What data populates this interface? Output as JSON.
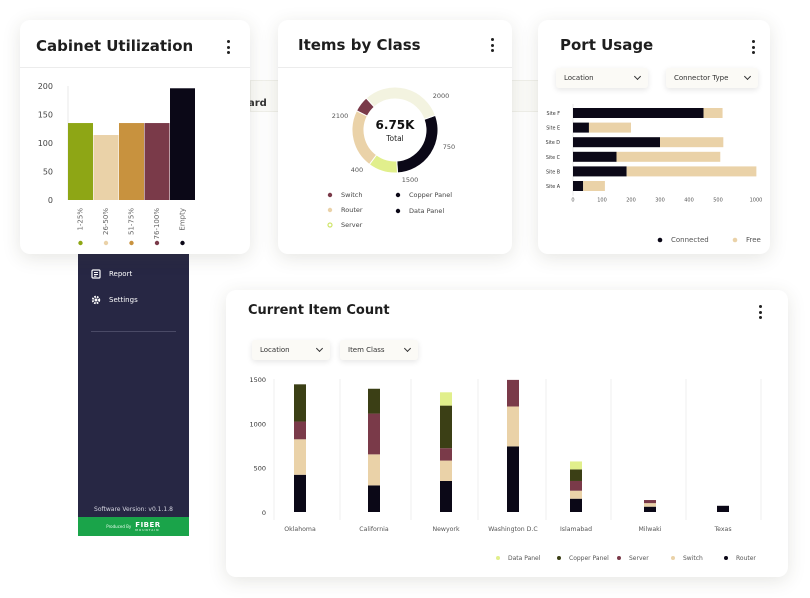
{
  "background_fragment": "ard",
  "cabinet_utilization": {
    "title": "Cabinet Utilization",
    "chart_data": {
      "type": "bar",
      "categories": [
        "1-25%",
        "26-50%",
        "51-75%",
        "76-100%",
        "Empty"
      ],
      "values": [
        135,
        114,
        135,
        135,
        196
      ],
      "colors": [
        "#8ea615",
        "#ead2a8",
        "#c8923e",
        "#7a3a49",
        "#0b0817"
      ],
      "yticks": [
        0,
        50,
        100,
        150,
        200
      ],
      "ylim": [
        0,
        200
      ]
    }
  },
  "items_by_class": {
    "title": "Items by Class",
    "center_value": "6.75K",
    "center_label": "Total",
    "chart_data": {
      "type": "pie",
      "labels": [
        "Data Panel",
        "Copper Panel",
        "Server",
        "Router",
        "Switch"
      ],
      "values": [
        2000,
        750,
        1500,
        400,
        2100
      ],
      "slice_labels": [
        "2000",
        "750",
        "1500",
        "400",
        "2100"
      ],
      "colors": [
        "#0b0817",
        "#0b0817",
        "#e1ef8c",
        "#ead2a8",
        "#7a3a49",
        "#f4f4e4"
      ],
      "legend": [
        {
          "label": "Switch",
          "color": "#7a3a49",
          "ring": false
        },
        {
          "label": "Copper Panel",
          "color": "#0b0817",
          "ring": false
        },
        {
          "label": "Router",
          "color": "#ead2a8",
          "ring": false
        },
        {
          "label": "Data Panel",
          "color": "#0b0817",
          "ring": false
        },
        {
          "label": "Server",
          "color": "#cfe56a",
          "ring": true
        }
      ]
    }
  },
  "port_usage": {
    "title": "Port Usage",
    "filters": {
      "location": "Location",
      "connector_type": "Connector Type"
    },
    "chart_data": {
      "type": "bar",
      "orientation": "horizontal",
      "categories": [
        "Site F",
        "Site E",
        "Site D",
        "Site C",
        "Site B",
        "Site A"
      ],
      "series": [
        {
          "name": "Connected",
          "values": [
            450,
            55,
            300,
            150,
            185,
            35
          ],
          "color": "#0b0817"
        },
        {
          "name": "Free",
          "values": [
            110,
            145,
            270,
            380,
            820,
            75
          ],
          "color": "#ead2a8"
        }
      ],
      "xticks": [
        0,
        100,
        200,
        300,
        400,
        500,
        1000
      ],
      "legend": [
        "Connected",
        "Free"
      ]
    }
  },
  "current_item_count": {
    "title": "Current Item Count",
    "filters": {
      "location": "Location",
      "item_class": "Item Class"
    },
    "chart_data": {
      "type": "bar",
      "stacked": true,
      "categories": [
        "Oklahoma",
        "California",
        "Newyork",
        "Washington D.C",
        "Islamabad",
        "Milwaki",
        "Texas"
      ],
      "series": [
        {
          "name": "Router",
          "values": [
            420,
            300,
            350,
            740,
            150,
            60,
            70
          ],
          "color": "#0b0817"
        },
        {
          "name": "Switch",
          "values": [
            400,
            350,
            230,
            450,
            90,
            40,
            0
          ],
          "color": "#ead2a8"
        },
        {
          "name": "Server",
          "values": [
            200,
            460,
            140,
            300,
            110,
            35,
            0
          ],
          "color": "#7a3a49"
        },
        {
          "name": "Copper Panel",
          "values": [
            420,
            280,
            480,
            0,
            130,
            0,
            0
          ],
          "color": "#3b3f15"
        },
        {
          "name": "Data Panel",
          "values": [
            0,
            0,
            150,
            0,
            90,
            0,
            0
          ],
          "color": "#e1ef8c"
        }
      ],
      "yticks": [
        0,
        500,
        1000,
        1500
      ],
      "ylim": [
        0,
        1500
      ],
      "legend": [
        {
          "label": "Data Panel",
          "color": "#e1ef8c"
        },
        {
          "label": "Copper Panel",
          "color": "#3b3f15"
        },
        {
          "label": "Server",
          "color": "#7a3a49"
        },
        {
          "label": "Switch",
          "color": "#ead2a8"
        },
        {
          "label": "Router",
          "color": "#0b0817"
        }
      ]
    }
  },
  "sidebar": {
    "items": [
      {
        "label": "Report",
        "icon": "report-icon"
      },
      {
        "label": "Settings",
        "icon": "gear-icon"
      }
    ],
    "version": "Software Version: v0.1.1.8",
    "produced_by": "Produced By",
    "brand_name": "FIBER",
    "brand_sub": "MOUNTAIN"
  }
}
